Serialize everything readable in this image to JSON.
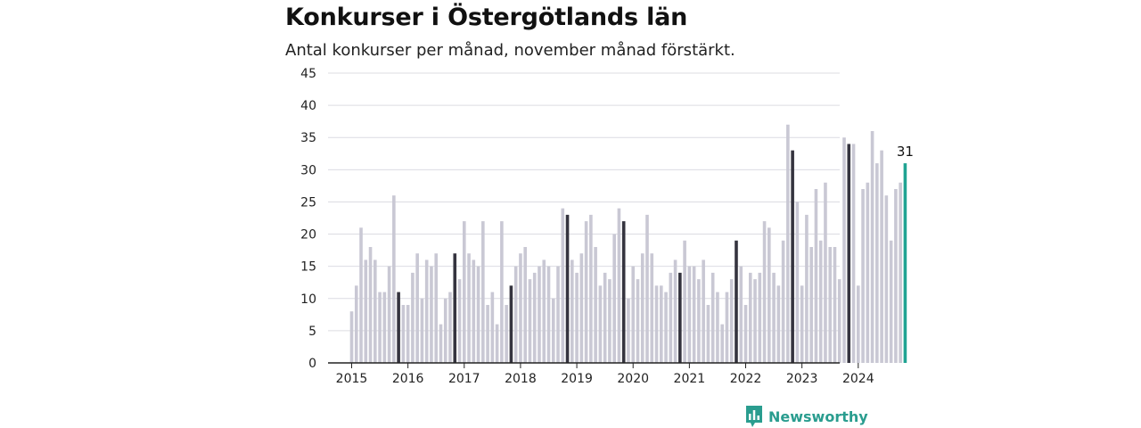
{
  "title": "Konkurser i Östergötlands län",
  "subtitle": "Antal konkurser per månad, november månad förstärkt.",
  "brand": "Newsworthy",
  "colors": {
    "normal": "#c9c8d4",
    "highlight": "#35343f",
    "last": "#20a393",
    "brand": "#2a9d8f"
  },
  "chart_data": {
    "type": "bar",
    "ylim": [
      0,
      45
    ],
    "yticks": [
      0,
      5,
      10,
      15,
      20,
      25,
      30,
      35,
      40,
      45
    ],
    "grid": true,
    "year_labels": [
      "2015",
      "2016",
      "2017",
      "2018",
      "2019",
      "2020",
      "2021",
      "2022",
      "2023",
      "2024"
    ],
    "start": "2015-01",
    "highlight_month": "november",
    "values": [
      8,
      12,
      21,
      16,
      18,
      16,
      11,
      11,
      15,
      26,
      11,
      9,
      9,
      14,
      17,
      10,
      16,
      15,
      17,
      6,
      10,
      11,
      17,
      13,
      22,
      17,
      16,
      15,
      22,
      9,
      11,
      6,
      22,
      9,
      12,
      15,
      17,
      18,
      13,
      14,
      15,
      16,
      15,
      10,
      15,
      24,
      23,
      16,
      14,
      17,
      22,
      23,
      18,
      12,
      14,
      13,
      20,
      24,
      22,
      10,
      15,
      13,
      17,
      23,
      17,
      12,
      12,
      11,
      14,
      16,
      14,
      19,
      15,
      15,
      13,
      16,
      9,
      14,
      11,
      6,
      11,
      13,
      19,
      15,
      9,
      14,
      13,
      14,
      22,
      21,
      14,
      12,
      19,
      37,
      33,
      25,
      12,
      23,
      18,
      27,
      19,
      28,
      18,
      18,
      13,
      35,
      34,
      34,
      12,
      27,
      28,
      36,
      31,
      33,
      26,
      19,
      27,
      28,
      31
    ],
    "last_label": "31"
  }
}
